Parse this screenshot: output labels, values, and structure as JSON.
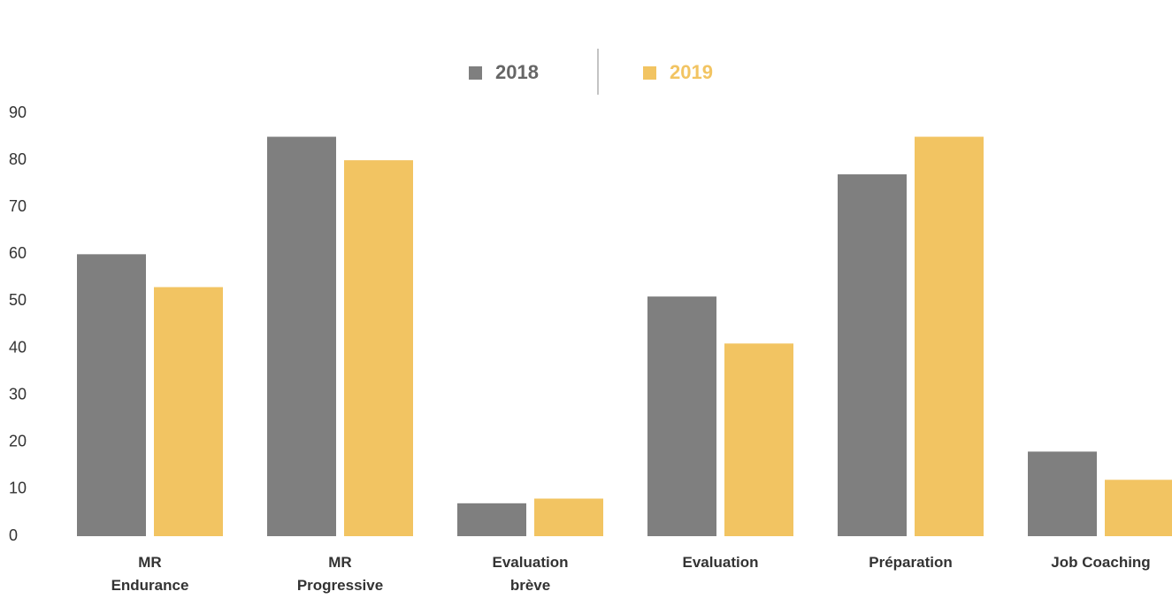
{
  "chart_data": {
    "type": "bar",
    "categories": [
      "MR\nEndurance",
      "MR\nProgressive",
      "Evaluation\nbrève",
      "Evaluation",
      "Préparation",
      "Job Coaching"
    ],
    "series": [
      {
        "name": "2018",
        "color": "#7f7f7f",
        "values": [
          60,
          85,
          7,
          51,
          77,
          18
        ]
      },
      {
        "name": "2019",
        "color": "#f2c462",
        "values": [
          53,
          80,
          8,
          41,
          85,
          12
        ]
      }
    ],
    "ylim": [
      0,
      90
    ],
    "yticks": [
      0,
      10,
      20,
      30,
      40,
      50,
      60,
      70,
      80,
      90
    ],
    "grid": false,
    "legend": "top"
  }
}
